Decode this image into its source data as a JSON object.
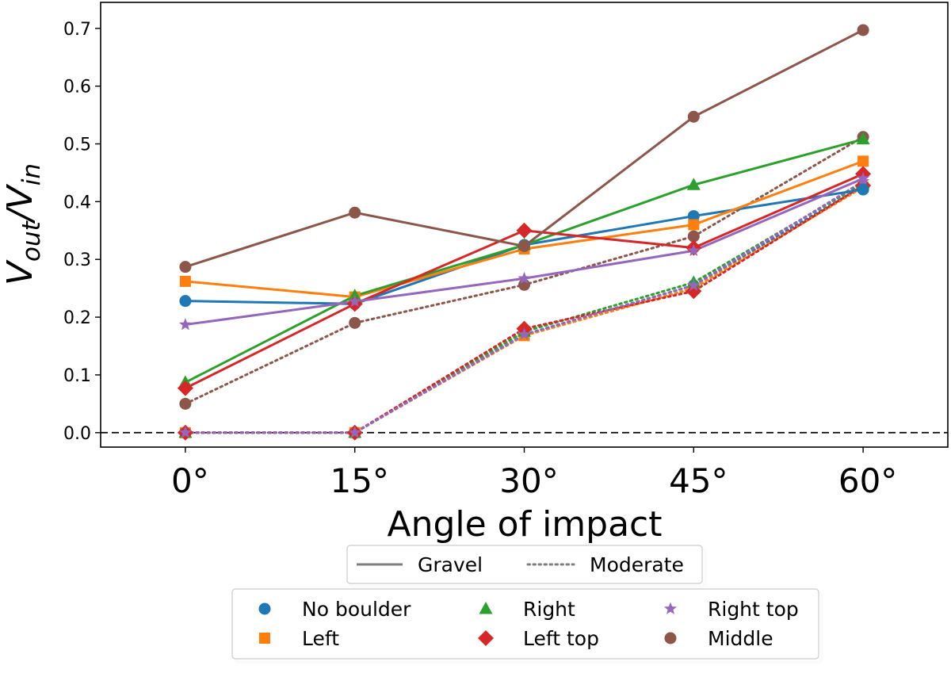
{
  "chart_data": {
    "type": "line",
    "title": "",
    "xlabel": "Angle of impact",
    "ylabel": {
      "base": "V",
      "sub": "out",
      "mid": "/V",
      "sub2": "in"
    },
    "categories": [
      "0°",
      "15°",
      "30°",
      "45°",
      "60°"
    ],
    "x": [
      0,
      15,
      30,
      45,
      60
    ],
    "xlim": [
      -7.5,
      67.5
    ],
    "ylim": [
      -0.025,
      0.745
    ],
    "yticks": [
      "0.0",
      "0.1",
      "0.2",
      "0.3",
      "0.4",
      "0.5",
      "0.6",
      "0.7"
    ],
    "reference_line": {
      "y": 0.0,
      "style": "dashed"
    },
    "style_legend": [
      {
        "label": "Gravel",
        "style": "solid"
      },
      {
        "label": "Moderate",
        "style": "dotted"
      }
    ],
    "series": [
      {
        "name": "No boulder",
        "color": "#1f77b4",
        "marker": "circle",
        "gravel": [
          0.228,
          0.223,
          0.325,
          0.375,
          0.421
        ],
        "moderate": [
          0.0,
          0.0,
          0.17,
          0.255,
          0.427
        ]
      },
      {
        "name": "Left",
        "color": "#ff7f0e",
        "marker": "square",
        "gravel": [
          0.262,
          0.235,
          0.318,
          0.36,
          0.47
        ],
        "moderate": [
          0.0,
          0.0,
          0.168,
          0.25,
          0.425
        ]
      },
      {
        "name": "Right",
        "color": "#2ca02c",
        "marker": "triangle",
        "gravel": [
          0.087,
          0.237,
          0.325,
          0.429,
          0.508
        ],
        "moderate": [
          0.0,
          0.0,
          0.175,
          0.26,
          0.432
        ]
      },
      {
        "name": "Left top",
        "color": "#d62728",
        "marker": "diamond",
        "gravel": [
          0.077,
          0.223,
          0.35,
          0.32,
          0.448
        ],
        "moderate": [
          0.0,
          0.0,
          0.18,
          0.245,
          0.428
        ]
      },
      {
        "name": "Right top",
        "color": "#9467bd",
        "marker": "star",
        "gravel": [
          0.187,
          0.227,
          0.267,
          0.315,
          0.44
        ],
        "moderate": [
          0.0,
          0.0,
          0.17,
          0.255,
          0.435
        ]
      },
      {
        "name": "Middle",
        "color": "#8c564b",
        "marker": "circle",
        "gravel": [
          0.287,
          0.381,
          0.323,
          0.547,
          0.697
        ],
        "moderate": [
          0.05,
          0.19,
          0.256,
          0.34,
          0.512
        ]
      }
    ]
  }
}
